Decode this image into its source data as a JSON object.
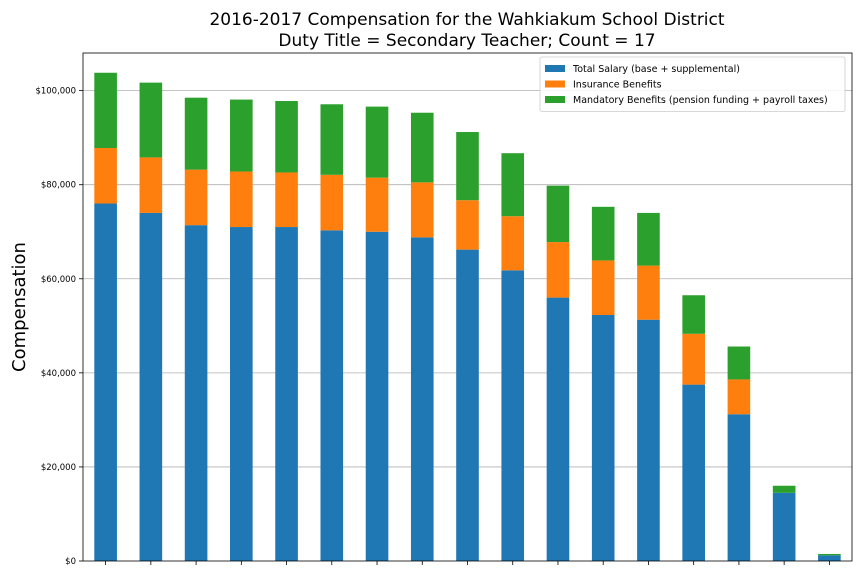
{
  "chart_data": {
    "type": "bar",
    "stacked": true,
    "title": "2016-2017 Compensation for the Wahkiakum School District",
    "subtitle": "Duty Title = Secondary Teacher; Count = 17",
    "xlabel": "",
    "ylabel": "Compensation",
    "ylim": [
      0,
      108000
    ],
    "yticks": [
      0,
      20000,
      40000,
      60000,
      80000,
      100000
    ],
    "ytick_labels": [
      "$0",
      "$20,000",
      "$40,000",
      "$60,000",
      "$80,000",
      "$100,000"
    ],
    "grid": "horizontal",
    "legend_position": "top-right",
    "categories": [
      "",
      "",
      "",
      "",
      "",
      "",
      "",
      "",
      "",
      "",
      "",
      "",
      "",
      "",
      "",
      "",
      ""
    ],
    "series": [
      {
        "name": "Total Salary (base + supplemental)",
        "color": "#1f77b4",
        "values": [
          76000,
          74000,
          71400,
          71000,
          71000,
          70300,
          70000,
          68800,
          66200,
          61800,
          56000,
          52300,
          51300,
          37500,
          31200,
          14500,
          1200
        ]
      },
      {
        "name": "Insurance Benefits",
        "color": "#ff7f0e",
        "values": [
          11800,
          11800,
          11800,
          11800,
          11600,
          11800,
          11500,
          11700,
          10500,
          11500,
          11800,
          11600,
          11500,
          10800,
          7400,
          0,
          0
        ]
      },
      {
        "name": "Mandatory Benefits (pension funding + payroll taxes)",
        "color": "#2ca02c",
        "values": [
          16000,
          15900,
          15300,
          15300,
          15200,
          15000,
          15100,
          14800,
          14500,
          13400,
          12000,
          11400,
          11200,
          8200,
          7000,
          1500,
          300
        ]
      }
    ]
  }
}
